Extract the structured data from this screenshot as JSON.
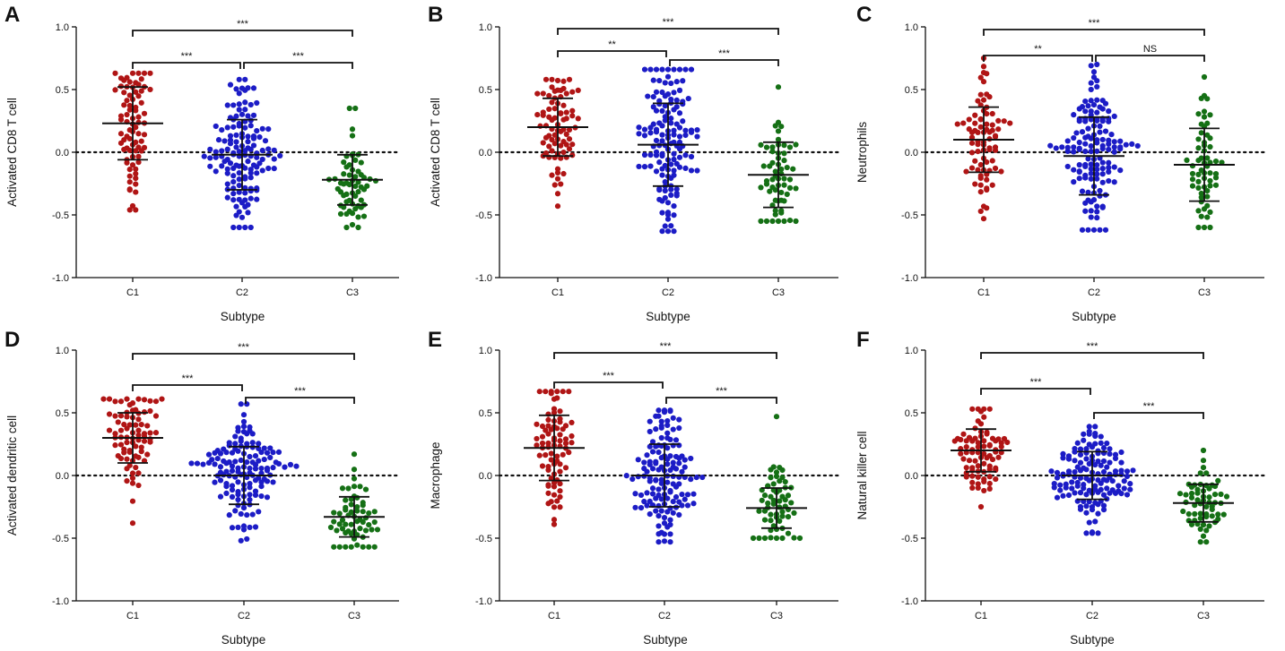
{
  "figure": {
    "common_ticks": [
      "-1.0",
      "-0.5",
      "0.0",
      "0.5",
      "1.0"
    ],
    "group_colors": {
      "C1": "#b01515",
      "C2": "#1c1cc6",
      "C3": "#157015"
    }
  },
  "chart_data": [
    {
      "type": "scatter",
      "panel_letter": "A",
      "ylabel": "Activated CD8 T cell",
      "xlabel": "Subtype",
      "categories": [
        "C1",
        "C2",
        "C3"
      ],
      "ylim": [
        -1.0,
        1.0
      ],
      "y_ticks": [
        -1.0,
        -0.5,
        0.0,
        0.5,
        1.0
      ],
      "reference_line_y": 0.0,
      "groups": [
        {
          "name": "C1",
          "n": 80,
          "mean": 0.23,
          "sd": 0.29,
          "min": -0.46,
          "max": 0.63
        },
        {
          "name": "C2",
          "n": 140,
          "mean": -0.02,
          "sd": 0.28,
          "min": -0.6,
          "max": 0.58
        },
        {
          "name": "C3",
          "n": 60,
          "mean": -0.22,
          "sd": 0.2,
          "min": -0.6,
          "max": 0.35
        }
      ],
      "comparisons": [
        {
          "groups": [
            "C1",
            "C3"
          ],
          "label": "***"
        },
        {
          "groups": [
            "C1",
            "C2"
          ],
          "label": "***"
        },
        {
          "groups": [
            "C2",
            "C3"
          ],
          "label": "***"
        }
      ]
    },
    {
      "type": "scatter",
      "panel_letter": "B",
      "ylabel": "Activated CD8 T cell",
      "xlabel": "Subtype",
      "categories": [
        "C1",
        "C2",
        "C3"
      ],
      "ylim": [
        -1.0,
        1.0
      ],
      "y_ticks": [
        -1.0,
        -0.5,
        0.0,
        0.5,
        1.0
      ],
      "reference_line_y": 0.0,
      "groups": [
        {
          "name": "C1",
          "n": 80,
          "mean": 0.2,
          "sd": 0.23,
          "min": -0.43,
          "max": 0.58
        },
        {
          "name": "C2",
          "n": 140,
          "mean": 0.06,
          "sd": 0.33,
          "min": -0.63,
          "max": 0.66
        },
        {
          "name": "C3",
          "n": 60,
          "mean": -0.18,
          "sd": 0.26,
          "min": -0.55,
          "max": 0.52
        }
      ],
      "comparisons": [
        {
          "groups": [
            "C1",
            "C3"
          ],
          "label": "***"
        },
        {
          "groups": [
            "C1",
            "C2"
          ],
          "label": "**"
        },
        {
          "groups": [
            "C2",
            "C3"
          ],
          "label": "***"
        }
      ]
    },
    {
      "type": "scatter",
      "panel_letter": "C",
      "ylabel": "Neutrophils",
      "xlabel": "Subtype",
      "categories": [
        "C1",
        "C2",
        "C3"
      ],
      "ylim": [
        -1.0,
        1.0
      ],
      "y_ticks": [
        -1.0,
        -0.5,
        0.0,
        0.5,
        1.0
      ],
      "reference_line_y": 0.0,
      "groups": [
        {
          "name": "C1",
          "n": 80,
          "mean": 0.1,
          "sd": 0.26,
          "min": -0.53,
          "max": 0.75
        },
        {
          "name": "C2",
          "n": 140,
          "mean": -0.03,
          "sd": 0.31,
          "min": -0.62,
          "max": 0.7
        },
        {
          "name": "C3",
          "n": 60,
          "mean": -0.1,
          "sd": 0.29,
          "min": -0.6,
          "max": 0.6
        }
      ],
      "comparisons": [
        {
          "groups": [
            "C1",
            "C3"
          ],
          "label": "***"
        },
        {
          "groups": [
            "C1",
            "C2"
          ],
          "label": "**"
        },
        {
          "groups": [
            "C2",
            "C3"
          ],
          "label": "NS"
        }
      ]
    },
    {
      "type": "scatter",
      "panel_letter": "D",
      "ylabel": "Activated dendritic cell",
      "xlabel": "Subtype",
      "categories": [
        "C1",
        "C2",
        "C3"
      ],
      "ylim": [
        -1.0,
        1.0
      ],
      "y_ticks": [
        -1.0,
        -0.5,
        0.0,
        0.5,
        1.0
      ],
      "reference_line_y": 0.0,
      "groups": [
        {
          "name": "C1",
          "n": 80,
          "mean": 0.3,
          "sd": 0.2,
          "min": -0.38,
          "max": 0.61
        },
        {
          "name": "C2",
          "n": 140,
          "mean": 0.0,
          "sd": 0.23,
          "min": -0.52,
          "max": 0.57
        },
        {
          "name": "C3",
          "n": 60,
          "mean": -0.33,
          "sd": 0.16,
          "min": -0.57,
          "max": 0.17
        }
      ],
      "comparisons": [
        {
          "groups": [
            "C1",
            "C3"
          ],
          "label": "***"
        },
        {
          "groups": [
            "C1",
            "C2"
          ],
          "label": "***"
        },
        {
          "groups": [
            "C2",
            "C3"
          ],
          "label": "***"
        }
      ]
    },
    {
      "type": "scatter",
      "panel_letter": "E",
      "ylabel": "Macrophage",
      "xlabel": "Subtype",
      "categories": [
        "C1",
        "C2",
        "C3"
      ],
      "ylim": [
        -1.0,
        1.0
      ],
      "y_ticks": [
        -1.0,
        -0.5,
        0.0,
        0.5,
        1.0
      ],
      "reference_line_y": 0.0,
      "groups": [
        {
          "name": "C1",
          "n": 80,
          "mean": 0.22,
          "sd": 0.26,
          "min": -0.39,
          "max": 0.67
        },
        {
          "name": "C2",
          "n": 140,
          "mean": 0.0,
          "sd": 0.25,
          "min": -0.53,
          "max": 0.52
        },
        {
          "name": "C3",
          "n": 60,
          "mean": -0.26,
          "sd": 0.16,
          "min": -0.5,
          "max": 0.47
        }
      ],
      "comparisons": [
        {
          "groups": [
            "C1",
            "C3"
          ],
          "label": "***"
        },
        {
          "groups": [
            "C1",
            "C2"
          ],
          "label": "***"
        },
        {
          "groups": [
            "C2",
            "C3"
          ],
          "label": "***"
        }
      ]
    },
    {
      "type": "scatter",
      "panel_letter": "F",
      "ylabel": "Natural killer cell",
      "xlabel": "Subtype",
      "categories": [
        "C1",
        "C2",
        "C3"
      ],
      "ylim": [
        -1.0,
        1.0
      ],
      "y_ticks": [
        -1.0,
        -0.5,
        0.0,
        0.5,
        1.0
      ],
      "reference_line_y": 0.0,
      "groups": [
        {
          "name": "C1",
          "n": 80,
          "mean": 0.2,
          "sd": 0.17,
          "min": -0.25,
          "max": 0.53
        },
        {
          "name": "C2",
          "n": 140,
          "mean": 0.0,
          "sd": 0.19,
          "min": -0.46,
          "max": 0.39
        },
        {
          "name": "C3",
          "n": 60,
          "mean": -0.22,
          "sd": 0.15,
          "min": -0.53,
          "max": 0.2
        }
      ],
      "comparisons": [
        {
          "groups": [
            "C1",
            "C3"
          ],
          "label": "***"
        },
        {
          "groups": [
            "C1",
            "C2"
          ],
          "label": "***"
        },
        {
          "groups": [
            "C2",
            "C3"
          ],
          "label": "***"
        }
      ]
    }
  ]
}
